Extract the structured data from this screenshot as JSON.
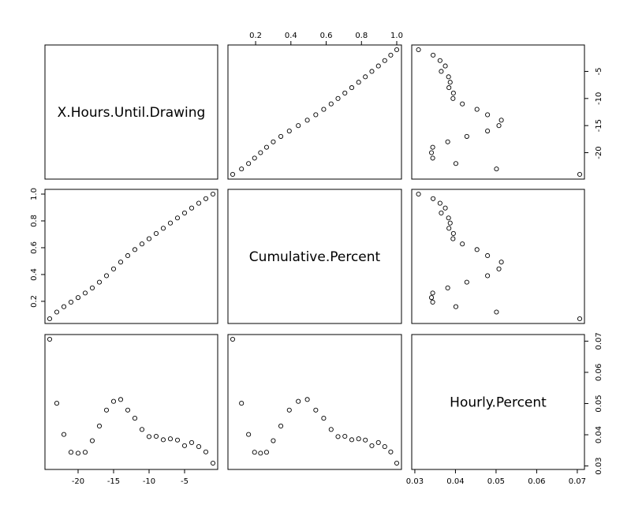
{
  "chart_data": {
    "type": "scatter-matrix",
    "variables": [
      "X.Hours.Until.Drawing",
      "Cumulative.Percent",
      "Hourly.Percent"
    ],
    "axis_ranges": {
      "X.Hours.Until.Drawing": [
        -24,
        -1
      ],
      "Cumulative.Percent": [
        0.07,
        1.0
      ],
      "Hourly.Percent": [
        0.0304,
        0.0706
      ]
    },
    "ticks": {
      "X.Hours.Until.Drawing": [
        -20,
        -15,
        -10,
        -5
      ],
      "Cumulative.Percent": [
        0.2,
        0.4,
        0.6,
        0.8,
        1.0
      ],
      "Hourly.Percent": [
        0.03,
        0.04,
        0.05,
        0.06,
        0.07
      ]
    },
    "tick_labels": {
      "X.Hours.Until.Drawing": [
        "-20",
        "-15",
        "-10",
        "-5"
      ],
      "Cumulative.Percent": [
        "0.2",
        "0.4",
        "0.6",
        "0.8",
        "1.0"
      ],
      "Hourly.Percent": [
        "0.03",
        "0.04",
        "0.05",
        "0.06",
        "0.07"
      ]
    },
    "grid": false,
    "legend": "none",
    "data": {
      "X.Hours.Until.Drawing": [
        -24,
        -23,
        -22,
        -21,
        -20,
        -19,
        -18,
        -17,
        -16,
        -15,
        -14,
        -13,
        -12,
        -11,
        -10,
        -9,
        -8,
        -7,
        -6,
        -5,
        -4,
        -3,
        -2,
        -1
      ],
      "Cumulative.Percent": [
        0.07,
        0.12,
        0.16,
        0.194,
        0.228,
        0.262,
        0.3,
        0.343,
        0.391,
        0.442,
        0.493,
        0.541,
        0.586,
        0.628,
        0.667,
        0.706,
        0.745,
        0.784,
        0.822,
        0.859,
        0.896,
        0.932,
        0.966,
        1.0
      ],
      "Hourly.Percent": [
        0.0706,
        0.0501,
        0.0401,
        0.0344,
        0.0341,
        0.0344,
        0.0381,
        0.0428,
        0.0479,
        0.0507,
        0.0513,
        0.0479,
        0.0453,
        0.0417,
        0.0394,
        0.0395,
        0.0384,
        0.0387,
        0.0383,
        0.0365,
        0.0375,
        0.0362,
        0.0345,
        0.0309
      ]
    }
  }
}
